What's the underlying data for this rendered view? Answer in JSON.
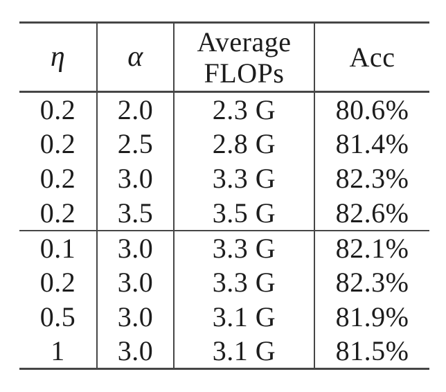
{
  "figure": {
    "type": "table",
    "description_colors": {
      "text": "#1c1c1c",
      "rule": "#464646",
      "background": "#ffffff"
    },
    "headers": [
      "η",
      "α",
      "Average\nFLOPs",
      "Acc"
    ],
    "rows": [
      {
        "eta": "0.2",
        "alpha": "2.0",
        "flops": "2.3 G",
        "acc": "80.6%"
      },
      {
        "eta": "0.2",
        "alpha": "2.5",
        "flops": "2.8 G",
        "acc": "81.4%"
      },
      {
        "eta": "0.2",
        "alpha": "3.0",
        "flops": "3.3 G",
        "acc": "82.3%"
      },
      {
        "eta": "0.2",
        "alpha": "3.5",
        "flops": "3.5 G",
        "acc": "82.6%"
      },
      {
        "eta": "0.1",
        "alpha": "3.0",
        "flops": "3.3 G",
        "acc": "82.1%"
      },
      {
        "eta": "0.2",
        "alpha": "3.0",
        "flops": "3.3 G",
        "acc": "82.3%"
      },
      {
        "eta": "0.5",
        "alpha": "3.0",
        "flops": "3.1 G",
        "acc": "81.9%"
      },
      {
        "eta": "1",
        "alpha": "3.0",
        "flops": "3.1 G",
        "acc": "81.5%"
      }
    ]
  }
}
